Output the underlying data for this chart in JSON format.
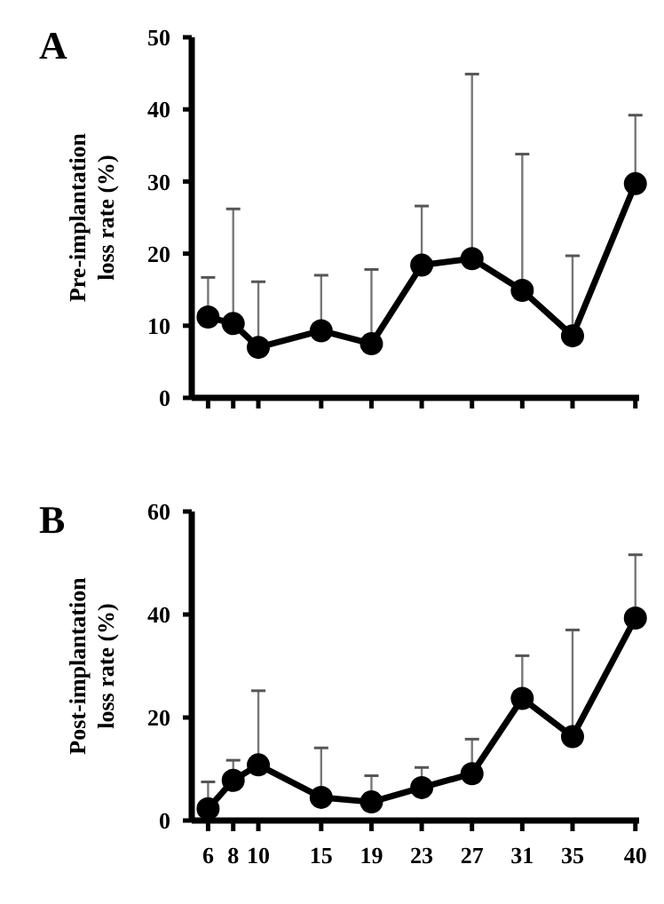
{
  "chart_data": [
    {
      "type": "line",
      "title": "A",
      "ylabel": "Pre-implantation\nloss rate (%)",
      "x": [
        6,
        8,
        10,
        15,
        19,
        23,
        27,
        31,
        35,
        40
      ],
      "series": [
        {
          "color": "#000000",
          "values": [
            11.2,
            10.3,
            7.0,
            9.3,
            7.5,
            18.4,
            19.3,
            14.9,
            8.6,
            29.7
          ],
          "errors": [
            [
              11.2,
              16.7
            ],
            [
              10.3,
              26.2
            ],
            [
              7.0,
              16.1
            ],
            [
              9.3,
              17.0
            ],
            [
              7.5,
              17.8
            ],
            [
              18.4,
              26.6
            ],
            [
              19.3,
              44.9
            ],
            [
              14.9,
              33.8
            ],
            [
              8.6,
              19.7
            ],
            [
              29.7,
              39.2
            ]
          ]
        }
      ],
      "xlim": [
        4.7,
        40.3
      ],
      "xticks": [
        6,
        8,
        10,
        15,
        19,
        23,
        27,
        31,
        35,
        40
      ],
      "ylim": [
        0,
        50
      ],
      "yticks": [
        0,
        10,
        20,
        30,
        40,
        50
      ],
      "tick_labels": "y",
      "grid": false,
      "marker": "circle",
      "line_style": "solid"
    },
    {
      "type": "line",
      "title": "B",
      "ylabel": "Post-implantation\nloss rate (%)",
      "x": [
        6,
        8,
        10,
        15,
        19,
        23,
        27,
        31,
        35,
        40
      ],
      "series": [
        {
          "color": "#000000",
          "values": [
            2.3,
            7.8,
            10.8,
            4.5,
            3.6,
            6.4,
            9.1,
            23.7,
            16.3,
            39.3
          ],
          "errors": [
            [
              2.3,
              7.5
            ],
            [
              7.8,
              11.7
            ],
            [
              10.8,
              25.2
            ],
            [
              4.5,
              14.1
            ],
            [
              3.6,
              8.7
            ],
            [
              6.4,
              10.3
            ],
            [
              9.1,
              15.8
            ],
            [
              23.7,
              32.0
            ],
            [
              16.3,
              37.0
            ],
            [
              39.3,
              51.6
            ]
          ]
        }
      ],
      "xlim": [
        4.7,
        40.3
      ],
      "xticks": [
        6,
        8,
        10,
        15,
        19,
        23,
        27,
        31,
        35,
        40
      ],
      "ylim": [
        0,
        60
      ],
      "yticks": [
        0,
        20,
        40,
        60
      ],
      "grid": false,
      "marker": "circle",
      "line_style": "solid"
    }
  ]
}
